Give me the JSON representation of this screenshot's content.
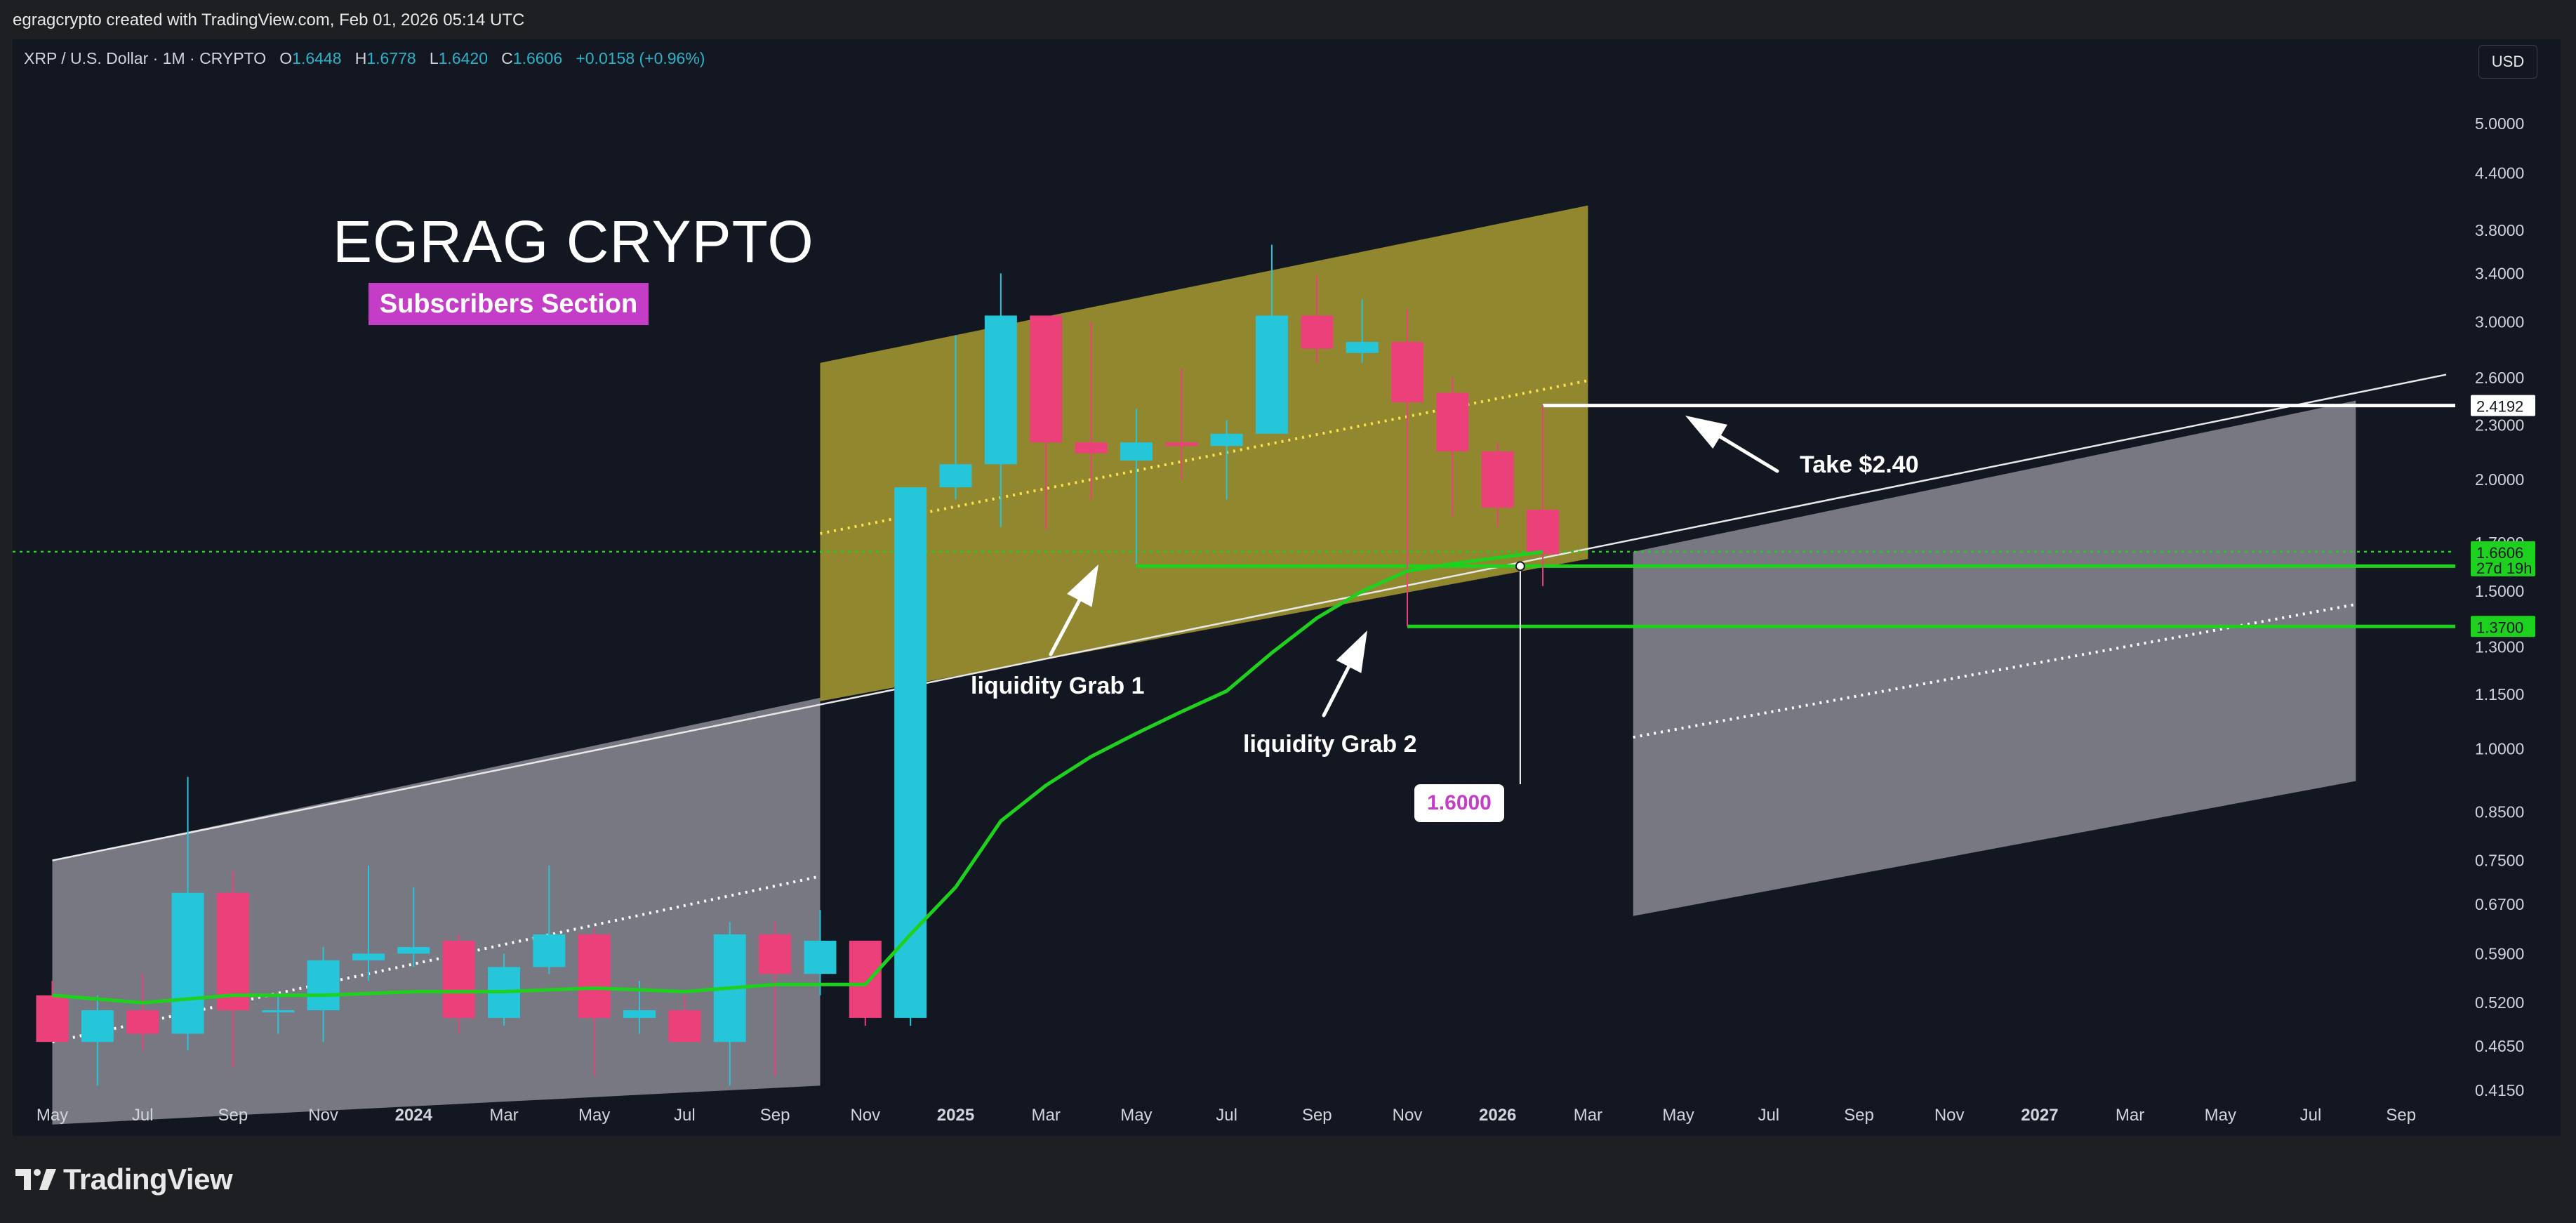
{
  "header": {
    "attribution": "egragcrypto created with TradingView.com, Feb 01, 2026 05:14 UTC"
  },
  "symbol": {
    "name": "XRP / U.S. Dollar · 1M · CRYPTO",
    "open_label": "O",
    "open": "1.6448",
    "high_label": "H",
    "high": "1.6778",
    "low_label": "L",
    "low": "1.6420",
    "close_label": "C",
    "close": "1.6606",
    "change": "+0.0158 (+0.96%)"
  },
  "currency_button": "USD",
  "brand": {
    "logo_text": "TradingView"
  },
  "overlay": {
    "title": "EGRAG CRYPTO",
    "badge": "Subscribers Section",
    "take_label": "Take $2.40",
    "grab1_label": "liquidity Grab 1",
    "grab2_label": "liquidity Grab 2",
    "marker_value": "1.6000"
  },
  "colors": {
    "up": "#26c6da",
    "down": "#ec407a",
    "ma": "#1fd11f",
    "channel_fill": "#b5a733",
    "projection_fill": "#9e9ea6",
    "background": "#131722",
    "badge": "#c33dc6"
  },
  "chart_data": {
    "type": "candlestick",
    "scale": "log",
    "ylim": [
      0.4,
      5.5
    ],
    "y_ticks": [
      "5.0000",
      "4.4000",
      "3.8000",
      "3.4000",
      "3.0000",
      "2.6000",
      "2.3000",
      "2.0000",
      "1.7000",
      "1.5000",
      "1.3000",
      "1.1500",
      "1.0000",
      "0.8500",
      "0.7500",
      "0.6700",
      "0.5900",
      "0.5200",
      "0.4650",
      "0.4150"
    ],
    "x_ticks": [
      "May",
      "Jul",
      "Sep",
      "Nov",
      "2024",
      "Mar",
      "May",
      "Jul",
      "Sep",
      "Nov",
      "2025",
      "Mar",
      "May",
      "Jul",
      "Sep",
      "Nov",
      "2026",
      "Mar",
      "May",
      "Jul",
      "Sep",
      "Nov",
      "2027",
      "Mar",
      "May",
      "Jul",
      "Sep"
    ],
    "bold_x_ticks": [
      "2024",
      "2025",
      "2026",
      "2027"
    ],
    "first_month": "2023-04",
    "candles": [
      {
        "t": "2023-04",
        "o": 0.53,
        "h": 0.55,
        "l": 0.47,
        "c": 0.47
      },
      {
        "t": "2023-05",
        "o": 0.47,
        "h": 0.53,
        "l": 0.42,
        "c": 0.51
      },
      {
        "t": "2023-06",
        "o": 0.51,
        "h": 0.56,
        "l": 0.46,
        "c": 0.48
      },
      {
        "t": "2023-07",
        "o": 0.48,
        "h": 0.93,
        "l": 0.46,
        "c": 0.69
      },
      {
        "t": "2023-08",
        "o": 0.69,
        "h": 0.73,
        "l": 0.44,
        "c": 0.51
      },
      {
        "t": "2023-09",
        "o": 0.51,
        "h": 0.53,
        "l": 0.48,
        "c": 0.51
      },
      {
        "t": "2023-10",
        "o": 0.51,
        "h": 0.6,
        "l": 0.47,
        "c": 0.58
      },
      {
        "t": "2023-11",
        "o": 0.58,
        "h": 0.74,
        "l": 0.55,
        "c": 0.59
      },
      {
        "t": "2023-12",
        "o": 0.59,
        "h": 0.7,
        "l": 0.57,
        "c": 0.6
      },
      {
        "t": "2024-01",
        "o": 0.61,
        "h": 0.62,
        "l": 0.48,
        "c": 0.5
      },
      {
        "t": "2024-02",
        "o": 0.5,
        "h": 0.59,
        "l": 0.49,
        "c": 0.57
      },
      {
        "t": "2024-03",
        "o": 0.57,
        "h": 0.74,
        "l": 0.56,
        "c": 0.62
      },
      {
        "t": "2024-04",
        "o": 0.62,
        "h": 0.63,
        "l": 0.43,
        "c": 0.5
      },
      {
        "t": "2024-05",
        "o": 0.5,
        "h": 0.55,
        "l": 0.48,
        "c": 0.51
      },
      {
        "t": "2024-06",
        "o": 0.51,
        "h": 0.53,
        "l": 0.47,
        "c": 0.47
      },
      {
        "t": "2024-07",
        "o": 0.47,
        "h": 0.64,
        "l": 0.42,
        "c": 0.62
      },
      {
        "t": "2024-08",
        "o": 0.62,
        "h": 0.64,
        "l": 0.43,
        "c": 0.56
      },
      {
        "t": "2024-09",
        "o": 0.56,
        "h": 0.66,
        "l": 0.53,
        "c": 0.61
      },
      {
        "t": "2024-10",
        "o": 0.61,
        "h": 0.61,
        "l": 0.49,
        "c": 0.5
      },
      {
        "t": "2024-11",
        "o": 0.5,
        "h": 1.96,
        "l": 0.49,
        "c": 1.96
      },
      {
        "t": "2024-12",
        "o": 1.96,
        "h": 2.9,
        "l": 1.9,
        "c": 2.08
      },
      {
        "t": "2025-01",
        "o": 2.08,
        "h": 3.4,
        "l": 1.77,
        "c": 3.05
      },
      {
        "t": "2025-02",
        "o": 3.05,
        "h": 3.05,
        "l": 1.76,
        "c": 2.2
      },
      {
        "t": "2025-03",
        "o": 2.2,
        "h": 3.0,
        "l": 1.9,
        "c": 2.14
      },
      {
        "t": "2025-04",
        "o": 2.1,
        "h": 2.4,
        "l": 1.61,
        "c": 2.2
      },
      {
        "t": "2025-05",
        "o": 2.2,
        "h": 2.66,
        "l": 2.0,
        "c": 2.18
      },
      {
        "t": "2025-06",
        "o": 2.18,
        "h": 2.33,
        "l": 1.9,
        "c": 2.25
      },
      {
        "t": "2025-07",
        "o": 2.25,
        "h": 3.66,
        "l": 2.25,
        "c": 3.05
      },
      {
        "t": "2025-08",
        "o": 3.05,
        "h": 3.38,
        "l": 2.7,
        "c": 2.8
      },
      {
        "t": "2025-09",
        "o": 2.77,
        "h": 3.18,
        "l": 2.7,
        "c": 2.85
      },
      {
        "t": "2025-10",
        "o": 2.85,
        "h": 3.1,
        "l": 1.37,
        "c": 2.44
      },
      {
        "t": "2025-11",
        "o": 2.5,
        "h": 2.6,
        "l": 1.82,
        "c": 2.15
      },
      {
        "t": "2025-12",
        "o": 2.15,
        "h": 2.2,
        "l": 1.77,
        "c": 1.86
      },
      {
        "t": "2026-01",
        "o": 1.85,
        "h": 2.42,
        "l": 1.52,
        "c": 1.65
      }
    ],
    "moving_average": [
      {
        "t": "2023-04",
        "v": 0.53
      },
      {
        "t": "2023-06",
        "v": 0.52
      },
      {
        "t": "2023-08",
        "v": 0.53
      },
      {
        "t": "2023-10",
        "v": 0.53
      },
      {
        "t": "2023-12",
        "v": 0.535
      },
      {
        "t": "2024-02",
        "v": 0.535
      },
      {
        "t": "2024-04",
        "v": 0.54
      },
      {
        "t": "2024-06",
        "v": 0.535
      },
      {
        "t": "2024-08",
        "v": 0.545
      },
      {
        "t": "2024-10",
        "v": 0.545
      },
      {
        "t": "2024-11",
        "v": 0.62
      },
      {
        "t": "2024-12",
        "v": 0.7
      },
      {
        "t": "2025-01",
        "v": 0.83
      },
      {
        "t": "2025-02",
        "v": 0.91
      },
      {
        "t": "2025-03",
        "v": 0.98
      },
      {
        "t": "2025-04",
        "v": 1.04
      },
      {
        "t": "2025-05",
        "v": 1.1
      },
      {
        "t": "2025-06",
        "v": 1.16
      },
      {
        "t": "2025-07",
        "v": 1.28
      },
      {
        "t": "2025-08",
        "v": 1.4
      },
      {
        "t": "2025-09",
        "v": 1.5
      },
      {
        "t": "2025-10",
        "v": 1.58
      },
      {
        "t": "2025-11",
        "v": 1.61
      },
      {
        "t": "2025-12",
        "v": 1.635
      },
      {
        "t": "2026-01",
        "v": 1.66
      }
    ],
    "channel": {
      "start": "2024-09",
      "end": "2026-02",
      "lower": [
        1.13,
        1.63
      ],
      "upper": [
        2.7,
        4.05
      ],
      "mid_dotted": [
        1.74,
        2.58
      ]
    },
    "projection_past": {
      "start": "2023-04",
      "end": "2024-09",
      "upper": [
        0.75,
        1.14
      ],
      "lower": [
        0.38,
        0.42
      ],
      "mid_dotted": [
        0.47,
        0.72
      ]
    },
    "projection_future": {
      "start": "2026-03",
      "end": "2027-07",
      "upper": [
        1.66,
        2.45
      ],
      "lower": [
        0.65,
        0.92
      ],
      "mid_dotted": [
        1.03,
        1.45
      ]
    },
    "upper_trendline": {
      "start": "2023-04",
      "end": "2027-09",
      "from": 0.75,
      "to": 2.62
    },
    "levels": [
      {
        "name": "take-profit",
        "value": 2.4192,
        "label": "2.4192",
        "start": "2026-01",
        "color": "#ffffff"
      },
      {
        "name": "current-price",
        "value": 1.6606,
        "label": "1.6606",
        "sub": "27d 19h",
        "dotted": true,
        "color": "#1fd11f"
      },
      {
        "name": "grab-1",
        "value": 1.6,
        "start": "2025-04",
        "color": "#1fd11f"
      },
      {
        "name": "grab-2",
        "value": 1.37,
        "label": "1.3700",
        "start": "2025-10",
        "color": "#1fd11f"
      }
    ]
  }
}
